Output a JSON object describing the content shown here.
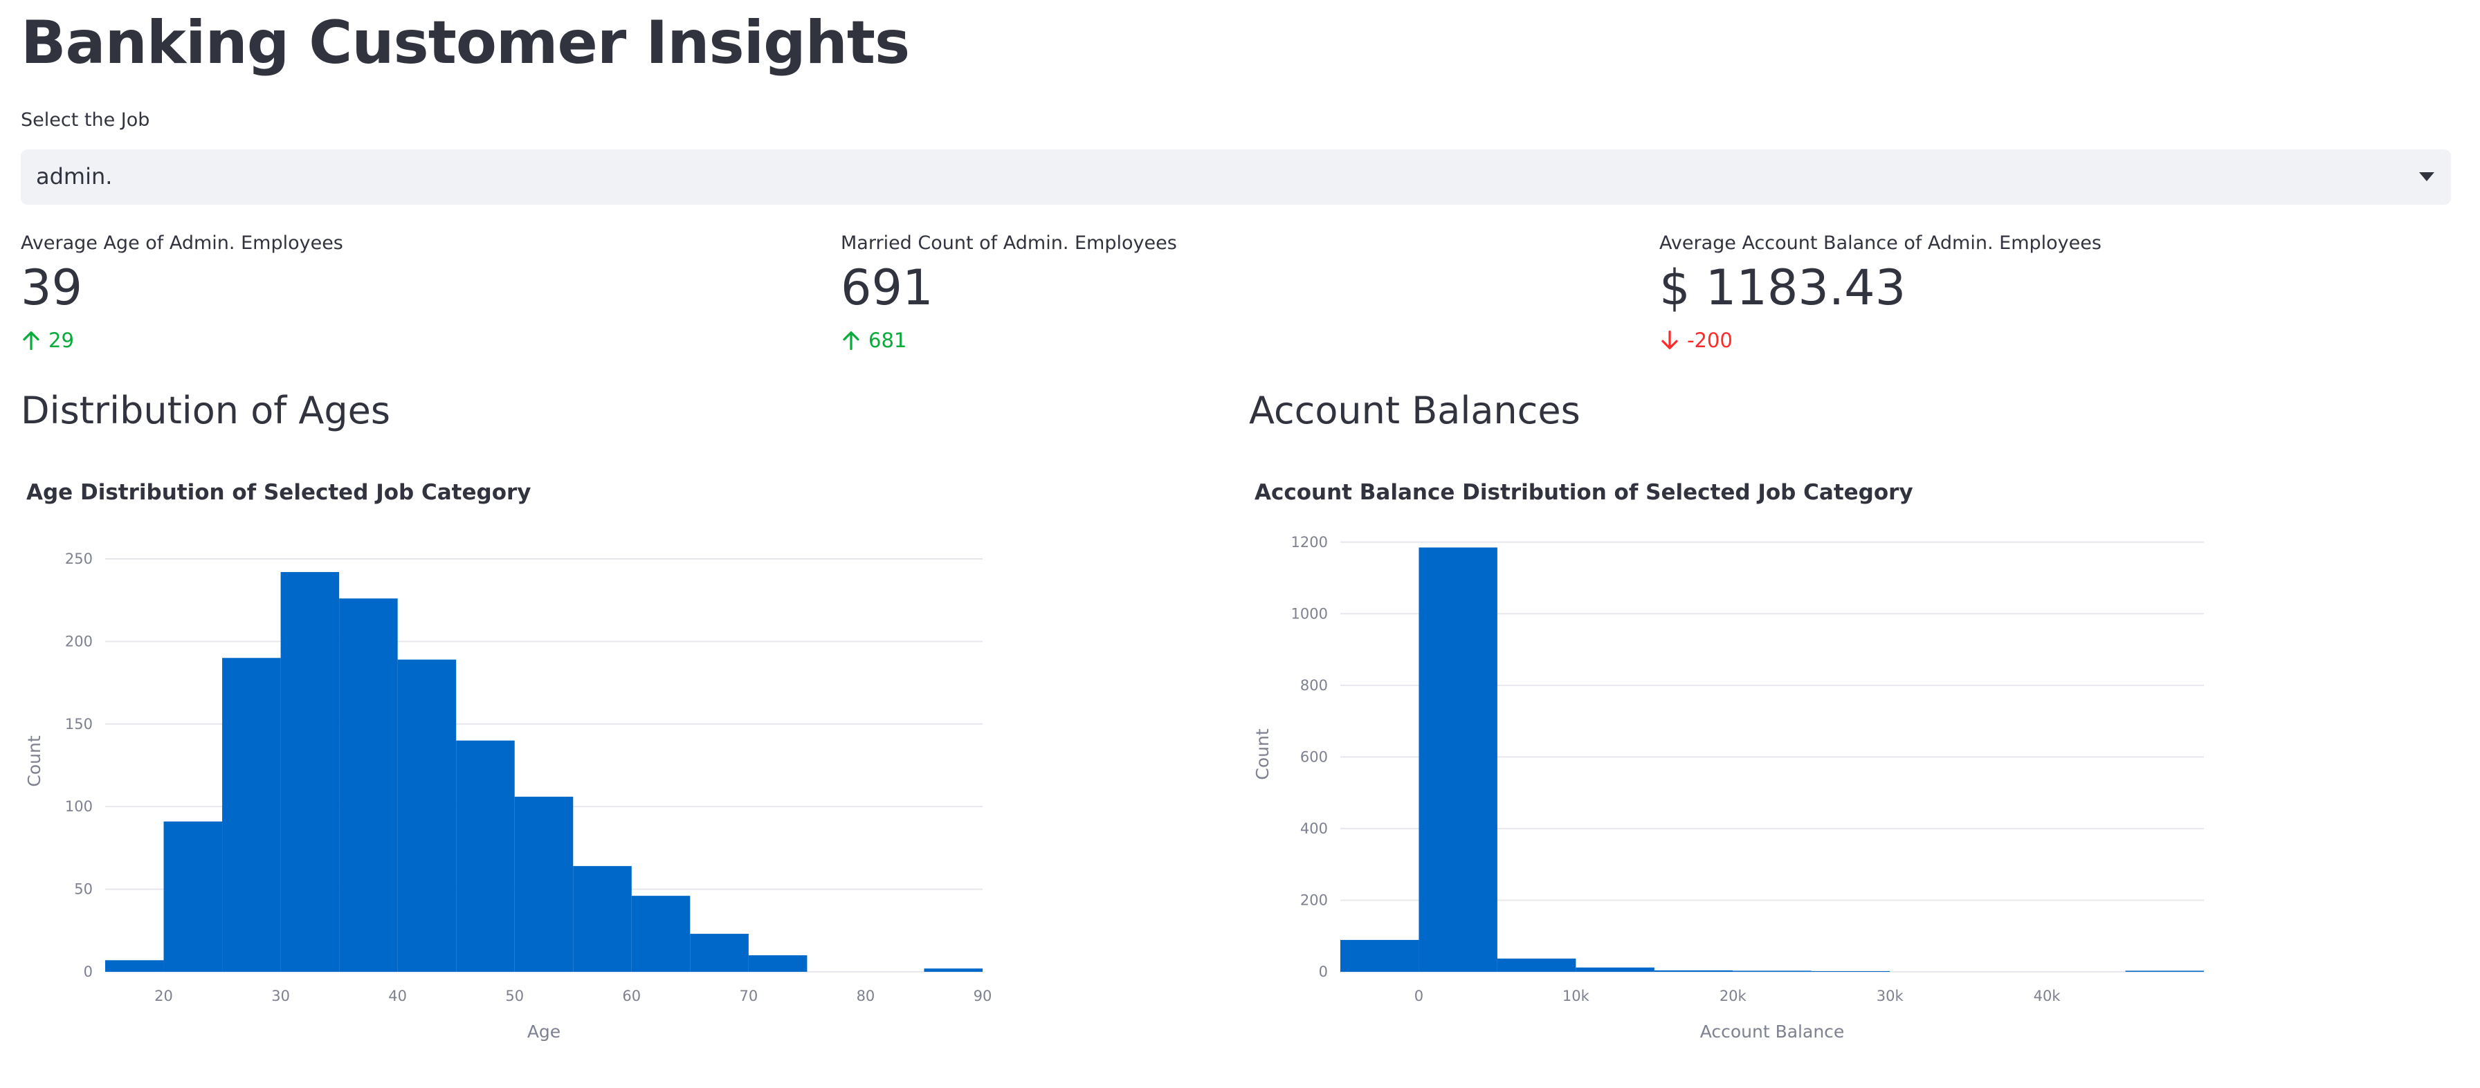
{
  "page": {
    "title": "Banking Customer Insights"
  },
  "job_select": {
    "label": "Select the Job",
    "value": "admin."
  },
  "metrics": [
    {
      "label": "Average Age of Admin. Employees",
      "value": "39",
      "delta": "29",
      "direction": "up"
    },
    {
      "label": "Married Count of Admin. Employees",
      "value": "691",
      "delta": "681",
      "direction": "up"
    },
    {
      "label": "Average Account Balance of Admin. Employees",
      "value": "$ 1183.43",
      "delta": "-200",
      "direction": "down"
    }
  ],
  "sections": {
    "ages": "Distribution of Ages",
    "balances": "Account Balances"
  },
  "colors": {
    "bar": "#0068c9",
    "delta_up": "#09ab3b",
    "delta_down": "#ff2b2b"
  },
  "chart_data": [
    {
      "type": "bar",
      "title": "Age Distribution of Selected Job Category",
      "xlabel": "Age",
      "ylabel": "Count",
      "bin_edges": [
        15,
        20,
        25,
        30,
        35,
        40,
        45,
        50,
        55,
        60,
        65,
        70,
        75,
        80,
        85,
        90
      ],
      "values": [
        7,
        91,
        190,
        242,
        226,
        189,
        140,
        106,
        64,
        46,
        23,
        10,
        0,
        0,
        2
      ],
      "xlim": [
        15,
        90
      ],
      "ylim": [
        0,
        255
      ],
      "x_ticks": [
        20,
        30,
        40,
        50,
        60,
        70,
        80,
        90
      ],
      "x_tick_labels": [
        "20",
        "30",
        "40",
        "50",
        "60",
        "70",
        "80",
        "90"
      ],
      "y_ticks": [
        0,
        50,
        100,
        150,
        200,
        250
      ],
      "y_tick_labels": [
        "0",
        "50",
        "100",
        "150",
        "200",
        "250"
      ]
    },
    {
      "type": "bar",
      "title": "Account Balance Distribution of Selected Job Category",
      "xlabel": "Account Balance",
      "ylabel": "Count",
      "bin_edges": [
        -5000,
        0,
        5000,
        10000,
        15000,
        20000,
        25000,
        30000,
        35000,
        40000,
        45000,
        50000
      ],
      "values": [
        89,
        1185,
        37,
        12,
        4,
        3,
        2,
        0,
        0,
        0,
        3
      ],
      "xlim": [
        -5000,
        50000
      ],
      "ylim": [
        0,
        1215
      ],
      "x_ticks": [
        0,
        10000,
        20000,
        30000,
        40000
      ],
      "x_tick_labels": [
        "0",
        "10k",
        "20k",
        "30k",
        "40k"
      ],
      "y_ticks": [
        0,
        200,
        400,
        600,
        800,
        1000,
        1200
      ],
      "y_tick_labels": [
        "0",
        "200",
        "400",
        "600",
        "800",
        "1000",
        "1200"
      ]
    }
  ]
}
